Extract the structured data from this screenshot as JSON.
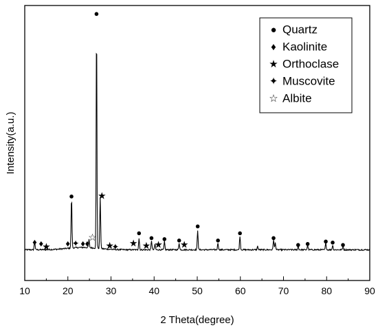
{
  "chart_data": {
    "type": "line",
    "xlabel": "2 Theta(degree)",
    "ylabel": "Intensity(a.u.)",
    "xlim": [
      10,
      90
    ],
    "xticks": [
      10,
      20,
      30,
      40,
      50,
      60,
      70,
      80,
      90
    ],
    "y_tick_labels": false,
    "grid": false,
    "legend_position": "top-right",
    "pattern": {
      "name": "XRD pattern",
      "baseline": 0.02,
      "peaks": [
        {
          "x": 12.3,
          "y": 0.04
        },
        {
          "x": 20.85,
          "y": 0.22
        },
        {
          "x": 24.9,
          "y": 0.035
        },
        {
          "x": 26.65,
          "y": 1.0
        },
        {
          "x": 27.5,
          "y": 0.22
        },
        {
          "x": 36.5,
          "y": 0.05
        },
        {
          "x": 39.4,
          "y": 0.04
        },
        {
          "x": 40.2,
          "y": 0.025
        },
        {
          "x": 42.4,
          "y": 0.035
        },
        {
          "x": 45.8,
          "y": 0.03
        },
        {
          "x": 50.1,
          "y": 0.085
        },
        {
          "x": 54.8,
          "y": 0.03
        },
        {
          "x": 59.9,
          "y": 0.06
        },
        {
          "x": 64.0,
          "y": 0.015
        },
        {
          "x": 67.7,
          "y": 0.045
        },
        {
          "x": 68.1,
          "y": 0.03
        },
        {
          "x": 73.4,
          "y": 0.015
        },
        {
          "x": 75.6,
          "y": 0.02
        },
        {
          "x": 79.8,
          "y": 0.03
        },
        {
          "x": 81.4,
          "y": 0.02
        },
        {
          "x": 83.8,
          "y": 0.015
        }
      ]
    },
    "phases": [
      {
        "name": "Quartz",
        "marker": "●",
        "peaks": [
          [
            20.85,
            0.25
          ],
          [
            26.65,
            1.04
          ],
          [
            36.5,
            0.09
          ],
          [
            39.4,
            0.07
          ],
          [
            42.4,
            0.065
          ],
          [
            45.8,
            0.06
          ],
          [
            50.1,
            0.12
          ],
          [
            54.8,
            0.06
          ],
          [
            59.9,
            0.09
          ],
          [
            67.7,
            0.07
          ],
          [
            73.4,
            0.04
          ],
          [
            75.6,
            0.045
          ],
          [
            79.8,
            0.055
          ],
          [
            81.4,
            0.05
          ],
          [
            83.8,
            0.04
          ]
        ]
      },
      {
        "name": "Kaolinite",
        "marker": "♦",
        "peaks": [
          [
            12.3,
            0.05
          ],
          [
            13.8,
            0.045
          ],
          [
            20.0,
            0.045
          ],
          [
            23.5,
            0.045
          ],
          [
            24.5,
            0.045
          ]
        ]
      },
      {
        "name": "Orthoclase",
        "marker": "★",
        "peaks": [
          [
            15.0,
            0.03
          ],
          [
            27.9,
            0.25
          ],
          [
            29.7,
            0.035
          ],
          [
            35.2,
            0.045
          ],
          [
            38.2,
            0.035
          ],
          [
            41.0,
            0.04
          ],
          [
            47.0,
            0.04
          ]
        ]
      },
      {
        "name": "Muscovite",
        "marker": "✦",
        "peaks": [
          [
            21.8,
            0.045
          ],
          [
            31.0,
            0.03
          ]
        ]
      },
      {
        "name": "Albite",
        "marker": "☆",
        "peaks": [
          [
            25.7,
            0.07
          ]
        ]
      }
    ]
  }
}
